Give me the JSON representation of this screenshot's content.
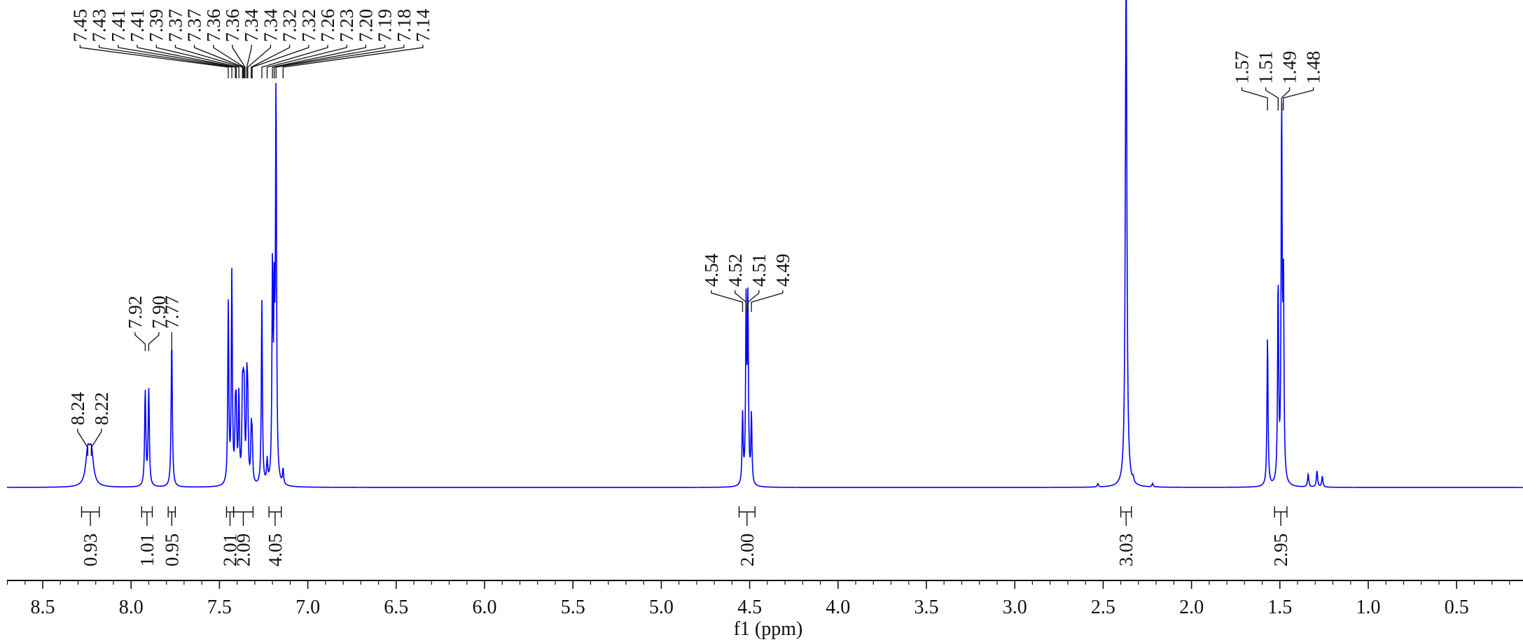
{
  "chart_data": {
    "type": "line",
    "subtype": "1H NMR spectrum",
    "title": "",
    "xlabel": "f1 (ppm)",
    "ylabel": "",
    "xlim": [
      8.75,
      -0.15
    ],
    "x_reversed": true,
    "grid": false,
    "line_color": "#0000ff",
    "label_color": "#111111",
    "x_ticks": [
      {
        "v": 8.5,
        "label": "8.5"
      },
      {
        "v": 8.0,
        "label": "8.0"
      },
      {
        "v": 7.5,
        "label": "7.5"
      },
      {
        "v": 7.0,
        "label": "7.0"
      },
      {
        "v": 6.5,
        "label": "6.5"
      },
      {
        "v": 6.0,
        "label": "6.0"
      },
      {
        "v": 5.5,
        "label": "5.5"
      },
      {
        "v": 5.0,
        "label": "5.0"
      },
      {
        "v": 4.5,
        "label": "4.5"
      },
      {
        "v": 4.0,
        "label": "4.0"
      },
      {
        "v": 3.5,
        "label": "3.5"
      },
      {
        "v": 3.0,
        "label": "3.0"
      },
      {
        "v": 2.5,
        "label": "2.5"
      },
      {
        "v": 2.0,
        "label": "2.0"
      },
      {
        "v": 1.5,
        "label": "1.5"
      },
      {
        "v": 1.0,
        "label": "1.0"
      },
      {
        "v": 0.5,
        "label": "0.5"
      }
    ],
    "peaks": [
      {
        "x": 8.245,
        "h": 0.074,
        "w": 0.014
      },
      {
        "x": 8.225,
        "h": 0.074,
        "w": 0.014
      },
      {
        "x": 7.92,
        "h": 0.218,
        "w": 0.004
      },
      {
        "x": 7.9,
        "h": 0.221,
        "w": 0.004
      },
      {
        "x": 7.77,
        "h": 0.334,
        "w": 0.004
      },
      {
        "x": 7.45,
        "h": 0.415,
        "w": 0.0035
      },
      {
        "x": 7.43,
        "h": 0.485,
        "w": 0.0035
      },
      {
        "x": 7.41,
        "h": 0.142,
        "w": 0.0035
      },
      {
        "x": 7.405,
        "h": 0.15,
        "w": 0.0035
      },
      {
        "x": 7.39,
        "h": 0.205,
        "w": 0.0035
      },
      {
        "x": 7.37,
        "h": 0.182,
        "w": 0.0035
      },
      {
        "x": 7.365,
        "h": 0.14,
        "w": 0.0035
      },
      {
        "x": 7.36,
        "h": 0.178,
        "w": 0.0035
      },
      {
        "x": 7.345,
        "h": 0.212,
        "w": 0.0035
      },
      {
        "x": 7.34,
        "h": 0.16,
        "w": 0.0035
      },
      {
        "x": 7.32,
        "h": 0.112,
        "w": 0.0035
      },
      {
        "x": 7.315,
        "h": 0.092,
        "w": 0.0035
      },
      {
        "x": 7.26,
        "h": 0.425,
        "w": 0.0035
      },
      {
        "x": 7.23,
        "h": 0.052,
        "w": 0.0035
      },
      {
        "x": 7.2,
        "h": 0.482,
        "w": 0.0035
      },
      {
        "x": 7.19,
        "h": 0.38,
        "w": 0.0035
      },
      {
        "x": 7.18,
        "h": 0.9,
        "w": 0.0035
      },
      {
        "x": 7.14,
        "h": 0.035,
        "w": 0.0035
      },
      {
        "x": 4.54,
        "h": 0.16,
        "w": 0.0035
      },
      {
        "x": 4.52,
        "h": 0.41,
        "w": 0.0035
      },
      {
        "x": 4.51,
        "h": 0.41,
        "w": 0.0035
      },
      {
        "x": 4.49,
        "h": 0.16,
        "w": 0.0035
      },
      {
        "x": 2.53,
        "h": 0.008,
        "w": 0.004
      },
      {
        "x": 2.37,
        "h": 1.25,
        "w": 0.005
      },
      {
        "x": 2.33,
        "h": 0.01,
        "w": 0.004
      },
      {
        "x": 2.22,
        "h": 0.008,
        "w": 0.004
      },
      {
        "x": 1.57,
        "h": 0.345,
        "w": 0.0035
      },
      {
        "x": 1.51,
        "h": 0.46,
        "w": 0.0035
      },
      {
        "x": 1.49,
        "h": 0.85,
        "w": 0.0035
      },
      {
        "x": 1.48,
        "h": 0.45,
        "w": 0.0035
      },
      {
        "x": 1.34,
        "h": 0.03,
        "w": 0.004
      },
      {
        "x": 1.29,
        "h": 0.038,
        "w": 0.004
      },
      {
        "x": 1.26,
        "h": 0.025,
        "w": 0.004
      }
    ],
    "peak_label_groups": [
      {
        "labels": [
          "7.45",
          "7.43",
          "7.41",
          "7.41",
          "7.39",
          "7.37",
          "7.37",
          "7.36",
          "7.36",
          "7.34",
          "7.34",
          "7.32",
          "7.32",
          "7.26",
          "7.23",
          "7.20",
          "7.19",
          "7.18",
          "7.14"
        ],
        "tips": [
          7.45,
          7.43,
          7.41,
          7.405,
          7.39,
          7.37,
          7.365,
          7.36,
          7.355,
          7.345,
          7.34,
          7.32,
          7.315,
          7.26,
          7.23,
          7.2,
          7.19,
          7.18,
          7.14
        ]
      },
      {
        "labels": [
          "8.24",
          "8.22"
        ],
        "tips": [
          8.245,
          8.225
        ]
      },
      {
        "labels": [
          "7.92",
          "7.90"
        ],
        "tips": [
          7.92,
          7.9
        ]
      },
      {
        "labels": [
          "7.77"
        ],
        "tips": [
          7.77
        ]
      },
      {
        "labels": [
          "4.54",
          "4.52",
          "4.51",
          "4.49"
        ],
        "tips": [
          4.54,
          4.52,
          4.51,
          4.49
        ]
      },
      {
        "labels": [
          "1.57",
          "1.51",
          "1.49",
          "1.48"
        ],
        "tips": [
          1.57,
          1.51,
          1.49,
          1.48
        ]
      }
    ],
    "integrals": [
      {
        "from": 8.28,
        "to": 8.18,
        "value": "0.93"
      },
      {
        "from": 7.94,
        "to": 7.88,
        "value": "1.01"
      },
      {
        "from": 7.79,
        "to": 7.75,
        "value": "0.95"
      },
      {
        "from": 7.46,
        "to": 7.42,
        "value": "2.01"
      },
      {
        "from": 7.42,
        "to": 7.31,
        "value": "2.09"
      },
      {
        "from": 7.22,
        "to": 7.15,
        "value": "4.05"
      },
      {
        "from": 4.56,
        "to": 4.47,
        "value": "2.00"
      },
      {
        "from": 2.4,
        "to": 2.34,
        "value": "3.03"
      },
      {
        "from": 1.53,
        "to": 1.46,
        "value": "2.95"
      }
    ]
  }
}
